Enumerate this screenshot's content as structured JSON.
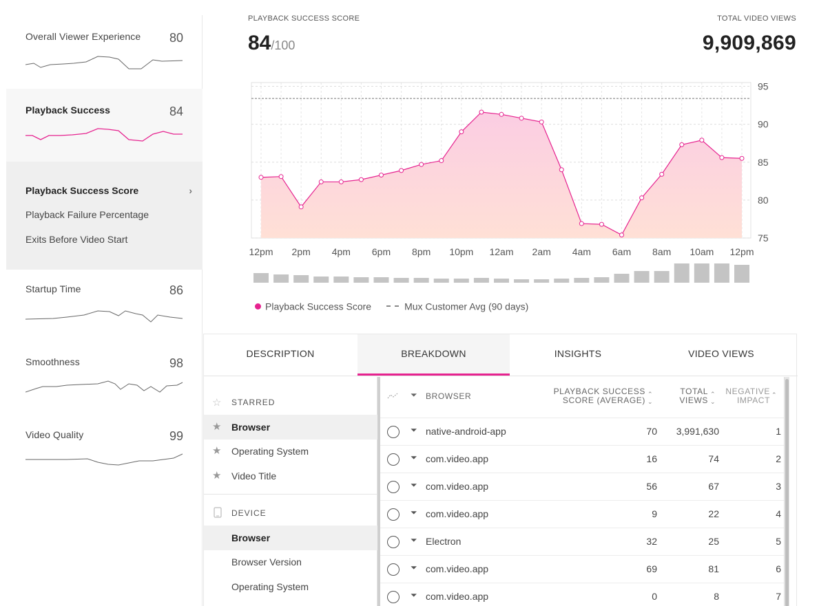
{
  "sidebar": {
    "metrics": [
      {
        "name": "Overall Viewer Experience",
        "score": "80"
      },
      {
        "name": "Playback Success",
        "score": "84"
      },
      {
        "name": "Startup Time",
        "score": "86"
      },
      {
        "name": "Smoothness",
        "score": "98"
      },
      {
        "name": "Video Quality",
        "score": "99"
      }
    ],
    "submenu": [
      "Playback Success Score",
      "Playback Failure Percentage",
      "Exits Before Video Start"
    ],
    "submenu_chevron": "›"
  },
  "header": {
    "score_caption": "PLAYBACK SUCCESS SCORE",
    "score": "84",
    "score_denominator": "/100",
    "views_caption": "TOTAL VIDEO VIEWS",
    "views": "9,909,869"
  },
  "chart_data": {
    "type": "area",
    "x": [
      "12pm",
      "1pm",
      "2pm",
      "3pm",
      "4pm",
      "5pm",
      "6pm",
      "7pm",
      "8pm",
      "9pm",
      "10pm",
      "11pm",
      "12am",
      "1am",
      "2am",
      "3am",
      "4am",
      "5am",
      "6am",
      "7am",
      "8am",
      "9am",
      "10am",
      "11am",
      "12pm"
    ],
    "xticks": [
      "12pm",
      "2pm",
      "4pm",
      "6pm",
      "8pm",
      "10pm",
      "12am",
      "2am",
      "4am",
      "6am",
      "8am",
      "10am",
      "12pm"
    ],
    "series": [
      {
        "name": "Playback Success Score",
        "values": [
          83.0,
          83.1,
          79.1,
          82.4,
          82.4,
          82.7,
          83.3,
          83.9,
          84.7,
          85.2,
          89.0,
          91.6,
          91.3,
          90.8,
          90.3,
          84.0,
          76.9,
          76.8,
          75.4,
          80.3,
          83.4,
          87.3,
          87.9,
          85.6,
          85.5
        ]
      }
    ],
    "reference": {
      "name": "Mux Customer Avg (90 days)",
      "value": 93.4
    },
    "volume_label": "views",
    "volume": [
      14,
      12,
      11,
      9,
      9,
      8,
      8,
      7,
      7,
      6,
      6,
      7,
      6,
      5,
      5,
      6,
      7,
      8,
      13,
      17,
      17,
      28,
      28,
      28,
      26
    ],
    "ylim": [
      75,
      95.5
    ],
    "yticks": [
      75,
      80,
      85,
      90,
      95
    ],
    "grid": true,
    "colors": {
      "line": "#e6228f",
      "fill_top": "#fbcde3",
      "fill_bottom": "#ffe0d6",
      "reference": "#999999",
      "bars": "#c4c4c4"
    },
    "legend_position": "bottom-left"
  },
  "tabs": [
    {
      "label": "DESCRIPTION"
    },
    {
      "label": "BREAKDOWN"
    },
    {
      "label": "INSIGHTS"
    },
    {
      "label": "VIDEO VIEWS"
    }
  ],
  "dimensions": {
    "starred_header": "STARRED",
    "starred": [
      "Browser",
      "Operating System",
      "Video Title"
    ],
    "device_header": "DEVICE",
    "device": [
      "Browser",
      "Browser Version",
      "Operating System"
    ]
  },
  "table": {
    "columns": {
      "dimension": "BROWSER",
      "score_line1": "PLAYBACK SUCCESS",
      "score_line2": "SCORE (AVERAGE)",
      "views_line1": "TOTAL",
      "views_line2": "VIEWS",
      "impact_line1": "NEGATIVE",
      "impact_line2": "IMPACT"
    },
    "rows": [
      {
        "name": "native-android-app",
        "score": "70",
        "views": "3,991,630",
        "impact": "1"
      },
      {
        "name": "com.video.app",
        "score": "16",
        "views": "74",
        "impact": "2"
      },
      {
        "name": "com.video.app",
        "score": "56",
        "views": "67",
        "impact": "3"
      },
      {
        "name": "com.video.app",
        "score": "9",
        "views": "22",
        "impact": "4"
      },
      {
        "name": "Electron",
        "score": "32",
        "views": "25",
        "impact": "5"
      },
      {
        "name": "com.video.app",
        "score": "69",
        "views": "81",
        "impact": "6"
      },
      {
        "name": "com.video.app",
        "score": "0",
        "views": "8",
        "impact": "7"
      }
    ]
  }
}
